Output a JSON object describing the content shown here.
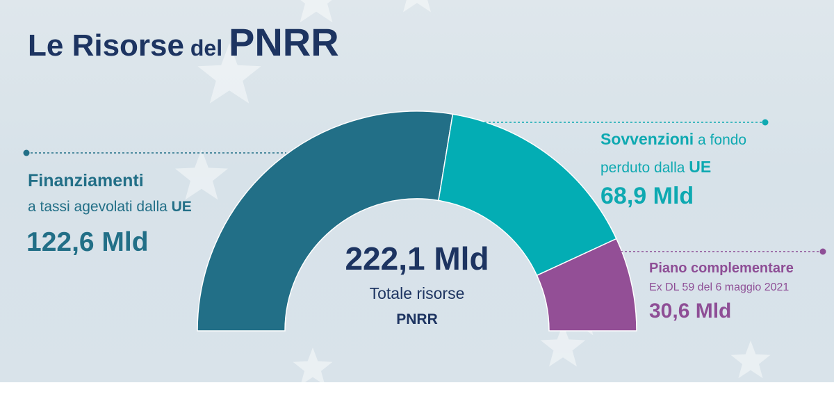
{
  "title": {
    "part1": "Le Risorse",
    "part2": "del",
    "part3": "PNRR"
  },
  "total": {
    "value": "222,1 Mld",
    "caption": "Totale risorse",
    "caption_bold": "PNRR"
  },
  "segments": {
    "finanziamenti": {
      "heading": "Finanziamenti",
      "line2_prefix": "a tassi agevolati dalla",
      "line2_bold": "UE",
      "value_label": "122,6 Mld"
    },
    "sovvenzioni": {
      "heading_bold": "Sovvenzioni",
      "heading_suffix": "a fondo",
      "line2_prefix": "perduto dalla",
      "line2_bold": "UE",
      "value_label": "68,9 Mld"
    },
    "piano": {
      "heading": "Piano complementare",
      "line2": "Ex DL 59 del 6 maggio 2021",
      "value_label": "30,6 Mld"
    }
  },
  "colors": {
    "finanziamenti": "#226f87",
    "sovvenzioni": "#03adb4",
    "piano": "#934f96",
    "title": "#1d3461"
  },
  "chart_data": {
    "type": "pie",
    "style": "semi-donut",
    "title": "Le Risorse del PNRR",
    "total": 222.1,
    "unit": "Mld",
    "slices": [
      {
        "label": "Finanziamenti a tassi agevolati dalla UE",
        "value": 122.6
      },
      {
        "label": "Sovvenzioni a fondo perduto dalla UE",
        "value": 68.9
      },
      {
        "label": "Piano complementare",
        "value": 30.6
      }
    ]
  }
}
